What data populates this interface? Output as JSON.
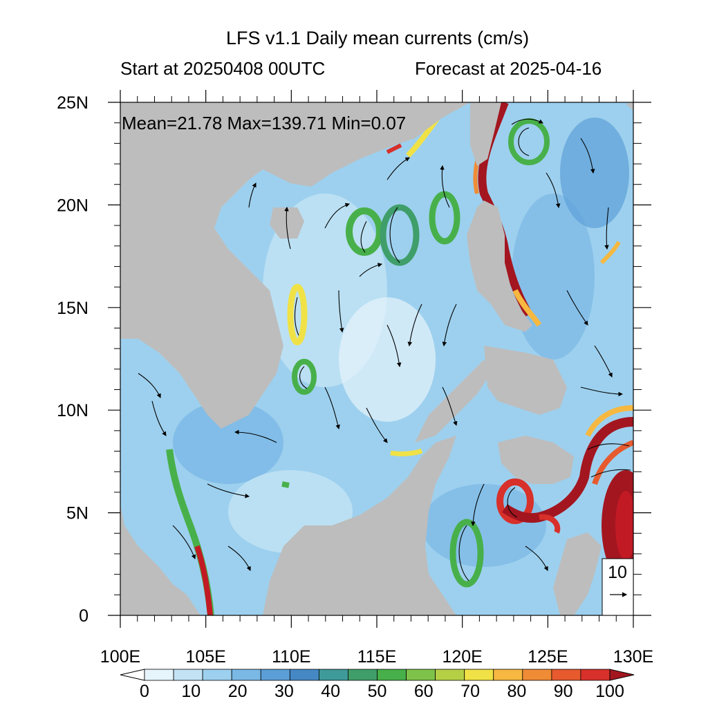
{
  "title": "LFS v1.1 Daily mean currents (cm/s)",
  "start_label": "Start at 20250408 00UTC",
  "forecast_label": "Forecast at 2025-04-16",
  "stats": "Mean=21.78  Max=139.71  Min=0.07",
  "ref_vector_label": "10",
  "colors": {
    "land": "#bdbdbd",
    "palette": [
      "#e6f4fb",
      "#c3e3f4",
      "#9dd0ee",
      "#7ab8e6",
      "#5c9fd8",
      "#4588c4",
      "#3f9a9a",
      "#3f9e6a",
      "#48b04a",
      "#7fc24a",
      "#b6d046",
      "#f0e246",
      "#f6b840",
      "#f08b36",
      "#e65a2e",
      "#d8302a",
      "#c21a24",
      "#a31620"
    ]
  },
  "chart_data": {
    "type": "map",
    "x_ticks": [
      "100E",
      "105E",
      "110E",
      "115E",
      "120E",
      "125E",
      "130E"
    ],
    "y_ticks": [
      "0",
      "5N",
      "10N",
      "15N",
      "20N",
      "25N"
    ],
    "lon_range": [
      100,
      130
    ],
    "lat_range": [
      0,
      25
    ],
    "colorbar": {
      "tick_labels": [
        "0",
        "10",
        "20",
        "30",
        "40",
        "50",
        "60",
        "70",
        "80",
        "90",
        "100"
      ],
      "levels": [
        0,
        5,
        10,
        15,
        20,
        25,
        30,
        35,
        40,
        45,
        50,
        55,
        60,
        65,
        70,
        75,
        80,
        85,
        90,
        95,
        100
      ],
      "extend": "both"
    }
  }
}
